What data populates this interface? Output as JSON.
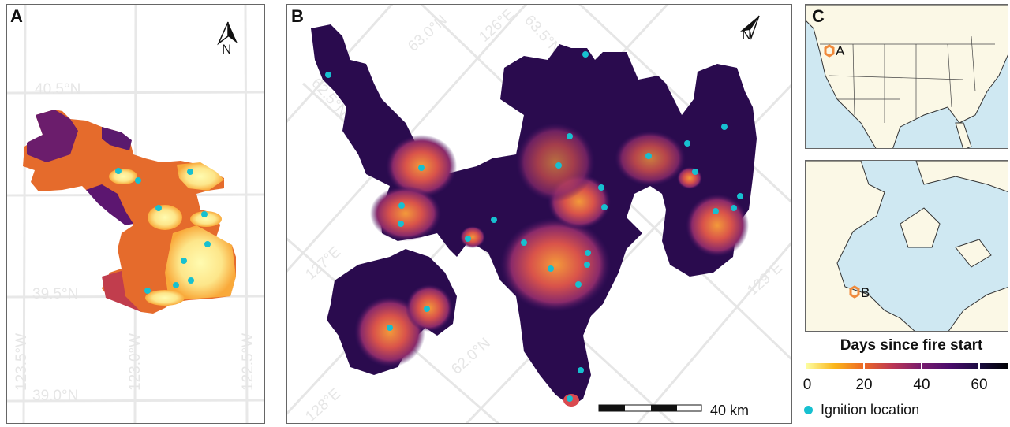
{
  "panels": {
    "a": {
      "label": "A",
      "north_label": "N",
      "grid_labels": {
        "lat": [
          "40.5°N",
          "39.5°N",
          "39.0°N"
        ],
        "lon": [
          "123.5°W",
          "123.0°W",
          "122.5°W"
        ]
      }
    },
    "b": {
      "label": "B",
      "north_label": "N",
      "grid_labels": [
        "63.0°N",
        "126°E",
        "63.5°N",
        "62.5°N",
        "127°E",
        "128°E",
        "62.0°N",
        "129°E"
      ],
      "scale_bar_label": "40 km"
    },
    "c": {
      "label": "C",
      "marker_a": "A",
      "marker_b": "B"
    }
  },
  "legend": {
    "title": "Days since fire start",
    "ticks": [
      "0",
      "20",
      "40",
      "60"
    ],
    "colormap": [
      "#fcffa4",
      "#fbb61a",
      "#ed6925",
      "#bc3754",
      "#781c6d",
      "#4a0c6b",
      "#1b0c41",
      "#000004"
    ],
    "ignition_label": "Ignition location",
    "ignition_color": "#17c0d0",
    "site_marker_color": "#f08a3c"
  }
}
